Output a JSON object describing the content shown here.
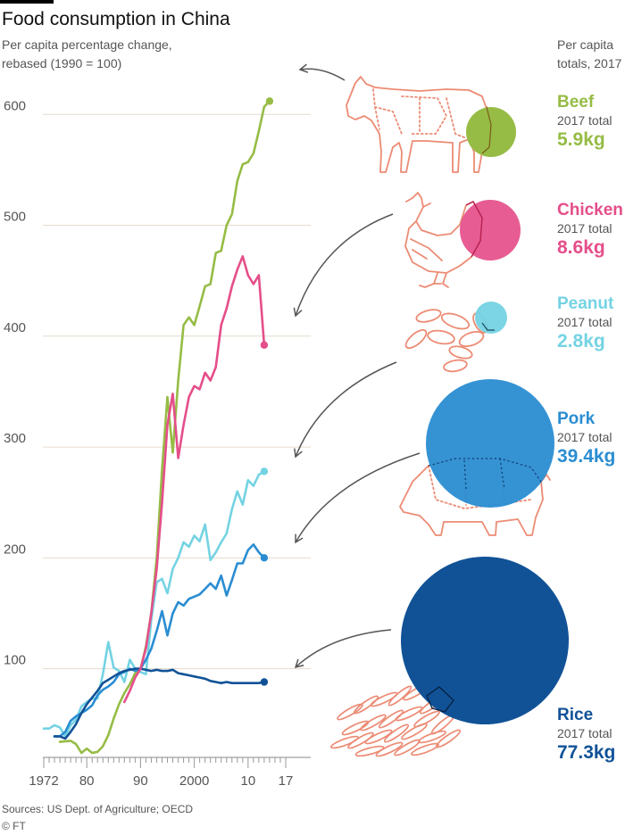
{
  "header": {
    "title": "Food consumption in China",
    "subtitle_line1": "Per capita percentage change,",
    "subtitle_line2": "rebased (1990 = 100)",
    "totals_line1": "Per capita",
    "totals_line2": "totals, 2017"
  },
  "footer": {
    "source": "Sources: US Dept. of Agriculture; OECD",
    "copyright": "© FT"
  },
  "chart_data": {
    "type": "line",
    "title": "Food consumption in China",
    "subtitle": "Per capita percentage change, rebased (1990 = 100)",
    "ylim": [
      20,
      630
    ],
    "xlim": [
      1972,
      2017
    ],
    "y_ticks": [
      100,
      200,
      300,
      400,
      500,
      600
    ],
    "x_ticks": [
      {
        "year": 1972,
        "label": "1972"
      },
      {
        "year": 1980,
        "label": "80"
      },
      {
        "year": 1990,
        "label": "90"
      },
      {
        "year": 2000,
        "label": "2000"
      },
      {
        "year": 2010,
        "label": "10"
      },
      {
        "year": 2017,
        "label": "17"
      }
    ],
    "grid": true,
    "series": [
      {
        "name": "Beef",
        "color": "#96bc45",
        "icon": "cow-icon",
        "total_label": "2017 total",
        "total": "5.9kg",
        "total_kg": 5.9,
        "points": [
          [
            1975,
            34
          ],
          [
            1977,
            35
          ],
          [
            1978,
            32
          ],
          [
            1979,
            24
          ],
          [
            1980,
            28
          ],
          [
            1981,
            24
          ],
          [
            1982,
            25
          ],
          [
            1983,
            30
          ],
          [
            1984,
            40
          ],
          [
            1985,
            55
          ],
          [
            1986,
            68
          ],
          [
            1987,
            78
          ],
          [
            1988,
            86
          ],
          [
            1989,
            96
          ],
          [
            1990,
            100
          ],
          [
            1991,
            120
          ],
          [
            1992,
            150
          ],
          [
            1993,
            200
          ],
          [
            1994,
            280
          ],
          [
            1995,
            345
          ],
          [
            1996,
            295
          ],
          [
            1997,
            360
          ],
          [
            1998,
            410
          ],
          [
            1999,
            417
          ],
          [
            2000,
            410
          ],
          [
            2001,
            427
          ],
          [
            2002,
            445
          ],
          [
            2003,
            447
          ],
          [
            2004,
            475
          ],
          [
            2005,
            477
          ],
          [
            2006,
            500
          ],
          [
            2007,
            510
          ],
          [
            2008,
            540
          ],
          [
            2009,
            555
          ],
          [
            2010,
            557
          ],
          [
            2011,
            565
          ],
          [
            2012,
            585
          ],
          [
            2013,
            607
          ],
          [
            2014,
            612
          ]
        ]
      },
      {
        "name": "Chicken",
        "color": "#e54e8a",
        "icon": "chicken-icon",
        "total_label": "2017 total",
        "total": "8.6kg",
        "total_kg": 8.6,
        "points": [
          [
            1987,
            70
          ],
          [
            1988,
            80
          ],
          [
            1989,
            92
          ],
          [
            1990,
            100
          ],
          [
            1991,
            118
          ],
          [
            1992,
            150
          ],
          [
            1993,
            190
          ],
          [
            1994,
            250
          ],
          [
            1995,
            320
          ],
          [
            1996,
            348
          ],
          [
            1997,
            290
          ],
          [
            1998,
            320
          ],
          [
            1999,
            345
          ],
          [
            2000,
            355
          ],
          [
            2001,
            352
          ],
          [
            2002,
            367
          ],
          [
            2003,
            360
          ],
          [
            2004,
            372
          ],
          [
            2005,
            410
          ],
          [
            2006,
            425
          ],
          [
            2007,
            445
          ],
          [
            2008,
            460
          ],
          [
            2009,
            472
          ],
          [
            2010,
            455
          ],
          [
            2011,
            447
          ],
          [
            2012,
            455
          ],
          [
            2013,
            392
          ]
        ]
      },
      {
        "name": "Peanut",
        "color": "#74d3e3",
        "icon": "peanut-icon",
        "total_label": "2017 total",
        "total": "2.8kg",
        "total_kg": 2.8,
        "points": [
          [
            1972,
            46
          ],
          [
            1973,
            46
          ],
          [
            1974,
            49
          ],
          [
            1975,
            47
          ],
          [
            1976,
            39
          ],
          [
            1977,
            49
          ],
          [
            1978,
            54
          ],
          [
            1979,
            66
          ],
          [
            1980,
            70
          ],
          [
            1981,
            73
          ],
          [
            1982,
            73
          ],
          [
            1983,
            95
          ],
          [
            1984,
            124
          ],
          [
            1985,
            101
          ],
          [
            1986,
            98
          ],
          [
            1987,
            88
          ],
          [
            1988,
            108
          ],
          [
            1989,
            100
          ],
          [
            1990,
            97
          ],
          [
            1991,
            95
          ],
          [
            1992,
            144
          ],
          [
            1993,
            178
          ],
          [
            1994,
            181
          ],
          [
            1995,
            168
          ],
          [
            1996,
            190
          ],
          [
            1997,
            200
          ],
          [
            1998,
            214
          ],
          [
            1999,
            210
          ],
          [
            2000,
            220
          ],
          [
            2001,
            215
          ],
          [
            2002,
            230
          ],
          [
            2003,
            198
          ],
          [
            2004,
            205
          ],
          [
            2005,
            214
          ],
          [
            2006,
            222
          ],
          [
            2007,
            244
          ],
          [
            2008,
            260
          ],
          [
            2009,
            248
          ],
          [
            2010,
            270
          ],
          [
            2011,
            265
          ],
          [
            2012,
            275
          ],
          [
            2013,
            278
          ]
        ]
      },
      {
        "name": "Pork",
        "color": "#2a8dd2",
        "icon": "pig-icon",
        "total_label": "2017 total",
        "total": "39.4kg",
        "total_kg": 39.4,
        "points": [
          [
            1974,
            39
          ],
          [
            1975,
            39
          ],
          [
            1976,
            43
          ],
          [
            1977,
            53
          ],
          [
            1978,
            57
          ],
          [
            1979,
            60
          ],
          [
            1980,
            63
          ],
          [
            1981,
            67
          ],
          [
            1982,
            76
          ],
          [
            1983,
            81
          ],
          [
            1984,
            84
          ],
          [
            1985,
            88
          ],
          [
            1986,
            95
          ],
          [
            1987,
            97
          ],
          [
            1988,
            100
          ],
          [
            1989,
            98
          ],
          [
            1990,
            100
          ],
          [
            1991,
            108
          ],
          [
            1992,
            118
          ],
          [
            1993,
            134
          ],
          [
            1994,
            152
          ],
          [
            1995,
            130
          ],
          [
            1996,
            150
          ],
          [
            1997,
            160
          ],
          [
            1998,
            157
          ],
          [
            1999,
            163
          ],
          [
            2000,
            165
          ],
          [
            2001,
            167
          ],
          [
            2002,
            172
          ],
          [
            2003,
            177
          ],
          [
            2004,
            172
          ],
          [
            2005,
            184
          ],
          [
            2006,
            166
          ],
          [
            2007,
            180
          ],
          [
            2008,
            195
          ],
          [
            2009,
            195
          ],
          [
            2010,
            207
          ],
          [
            2011,
            212
          ],
          [
            2012,
            205
          ],
          [
            2013,
            200
          ]
        ]
      },
      {
        "name": "Rice",
        "color": "#115297",
        "icon": "rice-icon",
        "total_label": "2017 total",
        "total": "77.3kg",
        "total_kg": 77.3,
        "points": [
          [
            1974,
            39
          ],
          [
            1975,
            39
          ],
          [
            1976,
            37
          ],
          [
            1977,
            43
          ],
          [
            1978,
            50
          ],
          [
            1979,
            60
          ],
          [
            1980,
            68
          ],
          [
            1981,
            74
          ],
          [
            1982,
            80
          ],
          [
            1983,
            87
          ],
          [
            1984,
            90
          ],
          [
            1985,
            93
          ],
          [
            1986,
            96
          ],
          [
            1987,
            98
          ],
          [
            1988,
            99
          ],
          [
            1989,
            100
          ],
          [
            1990,
            100
          ],
          [
            1991,
            99
          ],
          [
            1992,
            98
          ],
          [
            1993,
            99
          ],
          [
            1994,
            98
          ],
          [
            1995,
            98
          ],
          [
            1996,
            99
          ],
          [
            1997,
            96
          ],
          [
            1998,
            95
          ],
          [
            1999,
            94
          ],
          [
            2000,
            93
          ],
          [
            2001,
            92
          ],
          [
            2002,
            91
          ],
          [
            2003,
            89
          ],
          [
            2004,
            88
          ],
          [
            2005,
            87
          ],
          [
            2006,
            88
          ],
          [
            2007,
            87
          ],
          [
            2008,
            87
          ],
          [
            2009,
            87
          ],
          [
            2010,
            87
          ],
          [
            2011,
            87
          ],
          [
            2012,
            87
          ],
          [
            2013,
            88
          ]
        ]
      }
    ]
  }
}
